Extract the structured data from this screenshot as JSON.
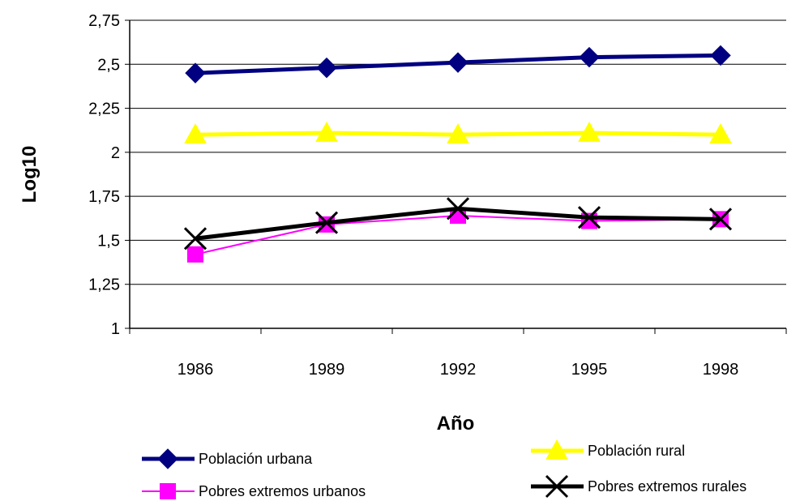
{
  "chart_data": {
    "type": "line",
    "xlabel": "Año",
    "ylabel": "Log10",
    "categories": [
      "1986",
      "1989",
      "1992",
      "1995",
      "1998"
    ],
    "ylim": [
      1,
      2.75
    ],
    "yticks": [
      "1",
      "1,25",
      "1,5",
      "1,75",
      "2",
      "2,25",
      "2,5",
      "2,75"
    ],
    "grid": "horizontal",
    "legend_position": "bottom",
    "series": [
      {
        "name": "Población urbana",
        "color": "#000080",
        "marker": "diamond",
        "values": [
          2.45,
          2.48,
          2.51,
          2.54,
          2.55
        ]
      },
      {
        "name": "Población rural",
        "color": "#ffff00",
        "marker": "triangle",
        "values": [
          2.1,
          2.11,
          2.1,
          2.11,
          2.1
        ]
      },
      {
        "name": "Pobres extremos urbanos",
        "color": "#ff00ff",
        "marker": "square",
        "values": [
          1.42,
          1.59,
          1.64,
          1.61,
          1.62
        ]
      },
      {
        "name": "Pobres extremos rurales",
        "color": "#000000",
        "marker": "x",
        "values": [
          1.51,
          1.6,
          1.68,
          1.63,
          1.62
        ]
      }
    ]
  }
}
